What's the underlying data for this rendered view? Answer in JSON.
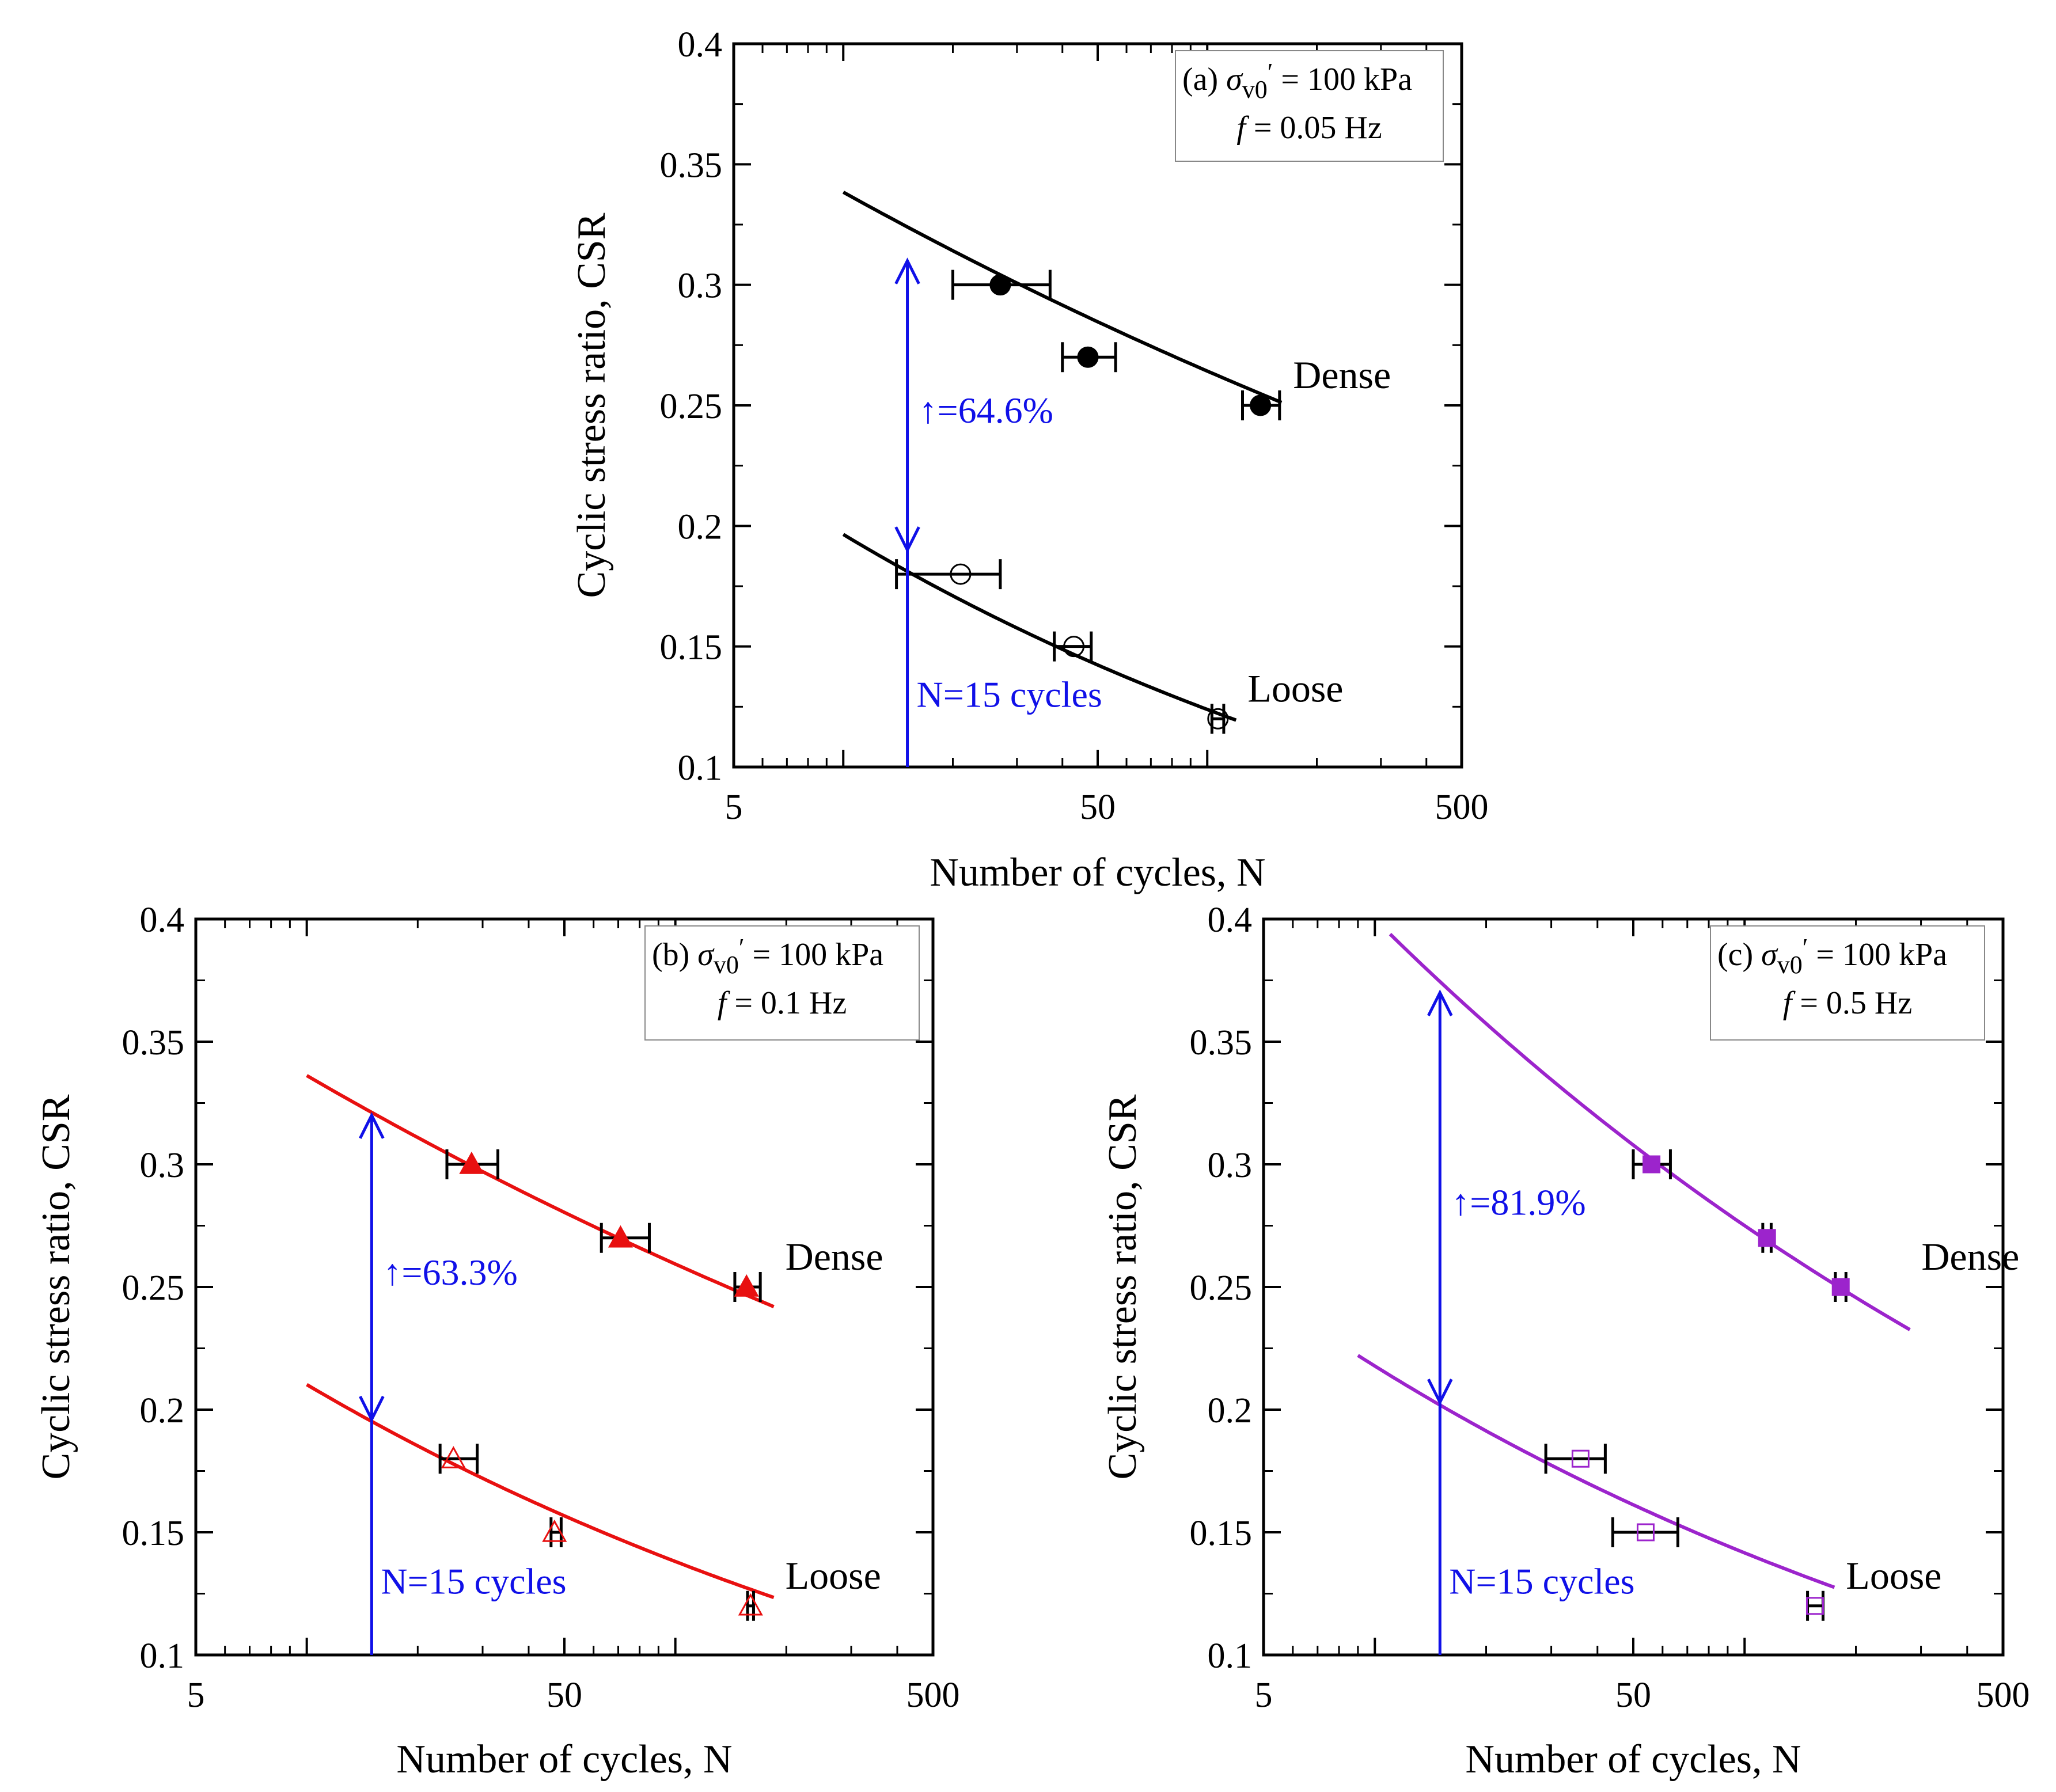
{
  "chart_data": [
    {
      "type": "scatter",
      "panel": "a",
      "legend": {
        "prefix": "(a)",
        "sigma": "σ",
        "sub": "v0",
        "prime": "′",
        "stress_value": " = 100 kPa",
        "freq_symbol": "f",
        "freq_value": " = 0.05 Hz"
      },
      "xlabel": "Number of cycles, N",
      "ylabel": "Cyclic stress ratio, CSR",
      "xscale": "log",
      "xlim": [
        5,
        500
      ],
      "ylim": [
        0.1,
        0.4
      ],
      "xticks": [
        "5",
        "50",
        "500"
      ],
      "yticks": [
        "0.1",
        "0.15",
        "0.2",
        "0.25",
        "0.3",
        "0.35",
        "0.4"
      ],
      "color": "#000000",
      "series": [
        {
          "name": "Dense",
          "marker": "circle",
          "filled": true,
          "points": [
            {
              "x": 27,
              "y": 0.3,
              "xerr": [
                20,
                37
              ]
            },
            {
              "x": 47,
              "y": 0.27,
              "xerr": [
                40,
                56
              ]
            },
            {
              "x": 140,
              "y": 0.25,
              "xerr": [
                125,
                158
              ]
            }
          ],
          "fit": {
            "a": 0.4335,
            "b": -0.1075,
            "x_range": [
              10,
              160
            ]
          }
        },
        {
          "name": "Loose",
          "marker": "circle",
          "filled": false,
          "points": [
            {
              "x": 21,
              "y": 0.18,
              "xerr": [
                14,
                27
              ]
            },
            {
              "x": 43,
              "y": 0.15,
              "xerr": [
                38,
                48
              ]
            },
            {
              "x": 107,
              "y": 0.12,
              "xerr": [
                103,
                111
              ]
            }
          ],
          "fit": {
            "a": 0.3116,
            "b": -0.2003,
            "x_range": [
              10,
              120
            ]
          }
        }
      ],
      "annotation": {
        "increase_label": "↑=64.6%",
        "cycles_label": "N=15 cycles",
        "x": 15,
        "y_top": 0.31,
        "y_bottom": 0.19,
        "color": "#1010e8"
      }
    },
    {
      "type": "scatter",
      "panel": "b",
      "legend": {
        "prefix": "(b)",
        "sigma": "σ",
        "sub": "v0",
        "prime": "′",
        "stress_value": " = 100 kPa",
        "freq_symbol": "f",
        "freq_value": " = 0.1 Hz"
      },
      "xlabel": "Number of cycles, N",
      "ylabel": "Cyclic stress ratio, CSR",
      "xscale": "log",
      "xlim": [
        5,
        500
      ],
      "ylim": [
        0.1,
        0.4
      ],
      "xticks": [
        "5",
        "50",
        "500"
      ],
      "yticks": [
        "0.1",
        "0.15",
        "0.2",
        "0.25",
        "0.3",
        "0.35",
        "0.4"
      ],
      "color": "#e81010",
      "series": [
        {
          "name": "Dense",
          "marker": "triangle",
          "filled": true,
          "points": [
            {
              "x": 28,
              "y": 0.3,
              "xerr": [
                24,
                33
              ]
            },
            {
              "x": 71,
              "y": 0.27,
              "xerr": [
                63,
                85
              ]
            },
            {
              "x": 156,
              "y": 0.25,
              "xerr": [
                145,
                170
              ]
            }
          ],
          "fit": {
            "a": 0.4358,
            "b": -0.1127,
            "x_range": [
              10,
              185
            ]
          }
        },
        {
          "name": "Loose",
          "marker": "triangle",
          "filled": false,
          "points": [
            {
              "x": 25,
              "y": 0.18,
              "xerr": [
                23,
                29
              ]
            },
            {
              "x": 47,
              "y": 0.15,
              "xerr": [
                46,
                49
              ]
            },
            {
              "x": 160,
              "y": 0.12,
              "xerr": [
                157,
                163
              ]
            }
          ],
          "fit": {
            "a": 0.32,
            "b": -0.1825,
            "x_range": [
              10,
              185
            ]
          }
        }
      ],
      "annotation": {
        "increase_label": "↑=63.3%",
        "cycles_label": "N=15 cycles",
        "x": 15,
        "y_top": 0.32,
        "y_bottom": 0.196,
        "color": "#1010e8"
      }
    },
    {
      "type": "scatter",
      "panel": "c",
      "legend": {
        "prefix": "(c)",
        "sigma": "σ",
        "sub": "v0",
        "prime": "′",
        "stress_value": " = 100 kPa",
        "freq_symbol": "f",
        "freq_value": " = 0.5 Hz"
      },
      "xlabel": "Number of cycles, N",
      "ylabel": "Cyclic stress ratio, CSR",
      "xscale": "log",
      "xlim": [
        5,
        500
      ],
      "ylim": [
        0.1,
        0.4
      ],
      "xticks": [
        "5",
        "50",
        "500"
      ],
      "yticks": [
        "0.1",
        "0.15",
        "0.2",
        "0.25",
        "0.3",
        "0.35",
        "0.4"
      ],
      "color": "#9c24cc",
      "series": [
        {
          "name": "Dense",
          "marker": "square",
          "filled": true,
          "points": [
            {
              "x": 56,
              "y": 0.3,
              "xerr": [
                50,
                63
              ]
            },
            {
              "x": 115,
              "y": 0.27,
              "xerr": [
                112,
                118
              ]
            },
            {
              "x": 182,
              "y": 0.25,
              "xerr": [
                176,
                188
              ]
            }
          ],
          "fit": {
            "a": 0.5818,
            "b": -0.1627,
            "x_range": [
              11,
              280
            ]
          }
        },
        {
          "name": "Loose",
          "marker": "square",
          "filled": false,
          "points": [
            {
              "x": 36,
              "y": 0.18,
              "xerr": [
                29,
                42
              ]
            },
            {
              "x": 54,
              "y": 0.15,
              "xerr": [
                44,
                66
              ]
            },
            {
              "x": 155,
              "y": 0.12,
              "xerr": [
                148,
                163
              ]
            }
          ],
          "fit": {
            "a": 0.3349,
            "b": -0.1869,
            "x_range": [
              9,
              175
            ]
          }
        }
      ],
      "annotation": {
        "increase_label": "↑=81.9%",
        "cycles_label": "N=15 cycles",
        "x": 15,
        "y_top": 0.37,
        "y_bottom": 0.203,
        "color": "#1010e8"
      }
    }
  ]
}
